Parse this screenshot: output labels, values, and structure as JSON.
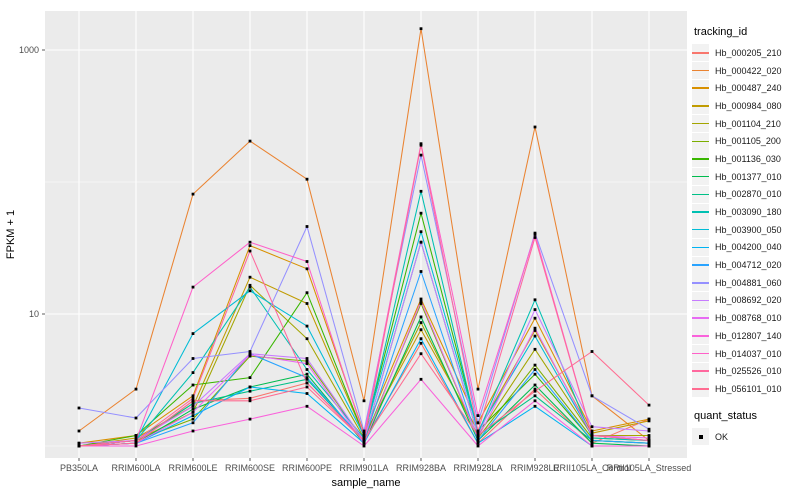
{
  "chart_data": {
    "type": "line",
    "title": "",
    "xlabel": "sample_name",
    "ylabel": "FPKM + 1",
    "x_categories": [
      "PB350LA",
      "RRIM600LA",
      "RRIM600LE",
      "RRIM600SE",
      "RRIM600PE",
      "RRIM901LA",
      "RRIM928BA",
      "RRIM928LA",
      "RRIM928LE",
      "RRII105LA_Control",
      "RRII105LA_Stressed"
    ],
    "y_scale": "log10",
    "y_axis_ticks": [
      {
        "label": "10",
        "value": 10
      },
      {
        "label": "1000",
        "value": 1000
      }
    ],
    "y_minor_gridlines": [
      1,
      100
    ],
    "ylim": [
      0.8,
      2000
    ],
    "legend_position": "right",
    "grid": true,
    "panel_bg": "#EBEBEB",
    "grid_color": "#FFFFFF",
    "point_marker": "black-square",
    "series": [
      {
        "name": "Hb_000205_210",
        "color": "#F8766D",
        "values": [
          1.0,
          1.05,
          2.2,
          2.3,
          3.0,
          1.1,
          6.0,
          1.05,
          2.7,
          1.05,
          1.6
        ]
      },
      {
        "name": "Hb_000422_020",
        "color": "#EA8331",
        "values": [
          1.3,
          2.7,
          81,
          204,
          105,
          2.2,
          1450,
          2.7,
          261,
          2.4,
          1.1
        ]
      },
      {
        "name": "Hb_000487_240",
        "color": "#D89000",
        "values": [
          1.05,
          1.2,
          2.4,
          33,
          22,
          1.25,
          13,
          1.5,
          9.3,
          1.3,
          1.6
        ]
      },
      {
        "name": "Hb_000984_080",
        "color": "#C09B00",
        "values": [
          1.0,
          1.15,
          2.0,
          19,
          12,
          1.2,
          7.6,
          1.3,
          7.5,
          1.25,
          1.55
        ]
      },
      {
        "name": "Hb_001104_210",
        "color": "#A3A500",
        "values": [
          1.0,
          1.1,
          1.8,
          16.5,
          6.5,
          1.15,
          8.6,
          1.2,
          5.4,
          1.2,
          1.2
        ]
      },
      {
        "name": "Hb_001105_200",
        "color": "#7CAE00",
        "values": [
          1.0,
          1.1,
          1.6,
          4.8,
          4.4,
          1.1,
          12,
          1.15,
          4.1,
          1.15,
          1.1
        ]
      },
      {
        "name": "Hb_001136_030",
        "color": "#39B600",
        "values": [
          1.0,
          1.2,
          2.9,
          3.3,
          14.5,
          1.2,
          58,
          1.3,
          3.5,
          1.1,
          1.05
        ]
      },
      {
        "name": "Hb_001377_010",
        "color": "#00BB4E",
        "values": [
          1.0,
          1.05,
          1.9,
          2.8,
          3.5,
          1.05,
          9.5,
          1.1,
          2.9,
          1.05,
          1.0
        ]
      },
      {
        "name": "Hb_002870_010",
        "color": "#00C087",
        "values": [
          1.0,
          1.1,
          2.1,
          2.6,
          3.2,
          1.1,
          35,
          1.2,
          2.4,
          1.1,
          1.05
        ]
      },
      {
        "name": "Hb_003090_180",
        "color": "#00C0B2",
        "values": [
          1.0,
          1.1,
          3.6,
          16,
          3.8,
          1.15,
          85,
          1.25,
          12.8,
          1.15,
          1.1
        ]
      },
      {
        "name": "Hb_003900_050",
        "color": "#00BCD6",
        "values": [
          1.0,
          1.1,
          7.1,
          15,
          8.1,
          1.2,
          42,
          1.3,
          6.8,
          1.2,
          1.1
        ]
      },
      {
        "name": "Hb_004200_040",
        "color": "#00B3F2",
        "values": [
          1.0,
          1.05,
          1.7,
          2.8,
          2.5,
          1.05,
          6.5,
          1.05,
          2.0,
          1.0,
          1.0
        ]
      },
      {
        "name": "Hb_004712_020",
        "color": "#29A3FF",
        "values": [
          1.0,
          1.05,
          1.5,
          5.0,
          3.3,
          1.1,
          21,
          1.1,
          3.8,
          1.1,
          1.05
        ]
      },
      {
        "name": "Hb_004881_060",
        "color": "#9590FF",
        "values": [
          1.94,
          1.63,
          4.6,
          5.2,
          46,
          1.3,
          160,
          1.5,
          41,
          2.4,
          1.34
        ]
      },
      {
        "name": "Hb_008692_020",
        "color": "#C77CFF",
        "values": [
          1.05,
          1.1,
          2.0,
          5.0,
          4.6,
          1.1,
          35,
          1.2,
          10.8,
          1.4,
          1.3
        ]
      },
      {
        "name": "Hb_008768_010",
        "color": "#E76BF3",
        "values": [
          1.0,
          1.05,
          1.8,
          4.9,
          4.2,
          1.05,
          12.5,
          1.15,
          7.8,
          1.2,
          1.15
        ]
      },
      {
        "name": "Hb_012807_140",
        "color": "#FA62DB",
        "values": [
          1.0,
          1.0,
          1.3,
          1.6,
          2.0,
          1.0,
          3.2,
          1.0,
          2.2,
          1.0,
          1.0
        ]
      },
      {
        "name": "Hb_014037_010",
        "color": "#FF61C9",
        "values": [
          1.0,
          1.1,
          16,
          35,
          25,
          1.2,
          195,
          1.7,
          40,
          1.2,
          1.1
        ]
      },
      {
        "name": "Hb_025526_010",
        "color": "#FF689E",
        "values": [
          1.0,
          1.1,
          2.3,
          30,
          3.0,
          1.1,
          190,
          1.3,
          38,
          1.2,
          1.1
        ]
      },
      {
        "name": "Hb_056101_010",
        "color": "#FF6C91",
        "values": [
          1.0,
          1.05,
          2.2,
          2.2,
          2.8,
          1.1,
          5.0,
          1.2,
          2.6,
          5.2,
          2.04
        ]
      }
    ]
  },
  "legend": {
    "tracking_title": "tracking_id",
    "quant_title": "quant_status",
    "quant_items": [
      {
        "label": "OK"
      }
    ]
  },
  "style": {
    "text_color": "#4D4D4D",
    "tick_color": "#333333"
  }
}
